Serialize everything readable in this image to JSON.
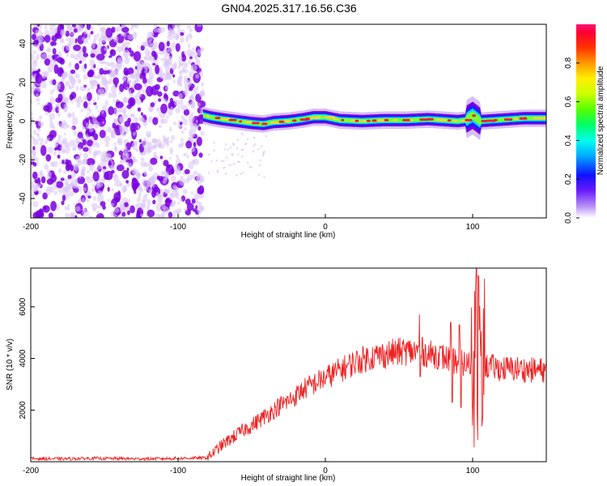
{
  "title": "GN04.2025.317.16.56.C36",
  "colors": {
    "line": "#ee2222",
    "noise_dark": "#7a00e0",
    "noise_light": "#d8c2f4",
    "ridge_core": "#e8203a",
    "ridge_edge": "#00d8ff",
    "ridge_mid": "#7cff2a",
    "ridge_dark": "#1e1eff"
  },
  "chart_data": [
    {
      "type": "heatmap",
      "xlabel": "Height of straight line (km)",
      "ylabel": "Frequency (Hz)",
      "xlim": [
        -200,
        150
      ],
      "ylim": [
        -50,
        50
      ],
      "xticks": [
        -200,
        -100,
        0,
        100
      ],
      "yticks": [
        -40,
        -20,
        0,
        20,
        40
      ],
      "noise_region_x": [
        -200,
        -83
      ],
      "ridge": {
        "x": [
          -83,
          -78,
          -70,
          -60,
          -50,
          -42,
          -35,
          -25,
          -15,
          -8,
          0,
          10,
          25,
          40,
          55,
          70,
          80,
          90,
          95,
          100,
          105,
          115,
          125,
          135,
          150
        ],
        "frequency": [
          3,
          2,
          1,
          0,
          -1,
          -1.5,
          -0.5,
          0,
          1,
          2,
          2,
          0.5,
          0,
          0.5,
          0.5,
          1,
          0.5,
          0,
          0.5,
          3,
          0,
          0.5,
          1,
          1.5,
          1.5
        ]
      },
      "colorbar": {
        "label": "Normalized spectral amplitude",
        "ticks": [
          0.0,
          0.2,
          0.4,
          0.6,
          0.8
        ],
        "range": [
          0,
          1
        ]
      }
    },
    {
      "type": "line",
      "xlabel": "Height of straight line (km)",
      "ylabel": "SNR (10 * v/v)",
      "xlim": [
        -200,
        150
      ],
      "ylim": [
        0,
        7500
      ],
      "xticks": [
        -200,
        -100,
        0,
        100
      ],
      "yticks": [
        2000,
        4000,
        6000
      ],
      "series": [
        {
          "name": "SNR",
          "x": [
            -200,
            -180,
            -160,
            -140,
            -120,
            -100,
            -90,
            -80,
            -75,
            -70,
            -65,
            -60,
            -55,
            -50,
            -45,
            -40,
            -35,
            -30,
            -25,
            -20,
            -15,
            -10,
            -5,
            0,
            5,
            10,
            15,
            20,
            25,
            30,
            35,
            40,
            45,
            50,
            55,
            60,
            65,
            70,
            75,
            80,
            85,
            90,
            95,
            100,
            105,
            110,
            115,
            120,
            130,
            140,
            150
          ],
          "values": [
            120,
            110,
            130,
            120,
            110,
            130,
            140,
            150,
            400,
            650,
            850,
            1050,
            1250,
            1400,
            1600,
            1800,
            2000,
            2200,
            2350,
            2550,
            2800,
            2950,
            3100,
            3250,
            3400,
            3550,
            3700,
            3850,
            3950,
            4050,
            4100,
            4150,
            4200,
            4250,
            4280,
            4250,
            4300,
            4150,
            4150,
            4050,
            3950,
            3850,
            3800,
            3750,
            3750,
            3700,
            3650,
            3600,
            3600,
            3550,
            3550
          ]
        }
      ]
    }
  ]
}
